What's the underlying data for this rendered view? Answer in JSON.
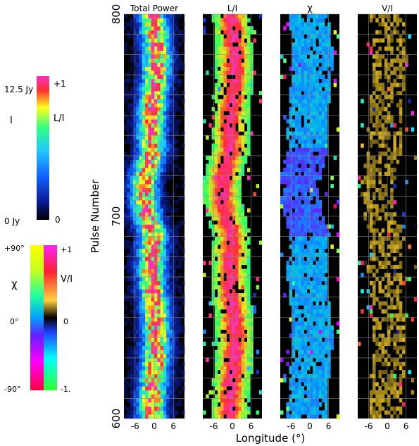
{
  "chart_data": [
    {
      "type": "heatmap",
      "title": "Total Power",
      "ylabel": "Pulse Number",
      "xlabel": "Longitude (°)",
      "ylim": [
        600,
        800
      ],
      "xlim": [
        -9.5,
        9.5
      ],
      "xticks": [
        "-6",
        "0",
        "6"
      ],
      "yticks": [
        "600",
        "700",
        "800"
      ],
      "colorbar": {
        "quantity": "I",
        "top_label": "12.5 Jy",
        "bottom_label": "0 Jy"
      }
    },
    {
      "type": "heatmap",
      "title": "L/I",
      "xticks": [
        "-6",
        "0",
        "6"
      ],
      "colorbar": {
        "quantity": "L/I",
        "top_label": "+1",
        "bottom_label": "0"
      }
    },
    {
      "type": "heatmap",
      "title": "χ",
      "xticks": [
        "-6",
        "0",
        "6"
      ],
      "colorbar": {
        "quantity": "χ",
        "top_label": "+90°",
        "mid_label": "0°",
        "bottom_label": "-90°"
      }
    },
    {
      "type": "heatmap",
      "title": "V/I",
      "xticks": [
        "-6",
        "0",
        "6"
      ],
      "colorbar": {
        "quantity": "V/I",
        "top_label": "+1",
        "mid_label": "0",
        "bottom_label": "-1."
      }
    }
  ],
  "colors": {
    "background": "#000000",
    "grid": "#8a8a8a",
    "intensity_scale": [
      "#000000",
      "#0a1a8c",
      "#1060ff",
      "#20c8ff",
      "#30ff80",
      "#ffff20",
      "#ff3030",
      "#ff30c0"
    ],
    "fraction_scale": [
      "#000000",
      "#2040ff",
      "#20c0ff",
      "#30ff60",
      "#e8e820",
      "#ff3030",
      "#ff30d0"
    ],
    "angle_scale": [
      "#ff0040",
      "#ff00ff",
      "#6020ff",
      "#00a0ff",
      "#20ffa0",
      "#c0ff20",
      "#ffff00"
    ],
    "circular_scale": [
      "#30ff30",
      "#00ffff",
      "#2040ff",
      "#000000",
      "#ffd040",
      "#ff2030",
      "#ff20ff"
    ],
    "vi_trace": "#d4b020"
  },
  "labels": {
    "I": "I",
    "L_over_I": "L/I",
    "chi": "χ",
    "V_over_I": "V/I",
    "i_top": "12.5 Jy",
    "i_bottom": "0 Jy",
    "li_top": "+1",
    "li_bottom": "0",
    "chi_top": "+90°",
    "chi_mid": "0°",
    "chi_bottom": "-90°",
    "vi_top": "+1",
    "vi_mid": "0",
    "vi_bottom": "-1."
  }
}
